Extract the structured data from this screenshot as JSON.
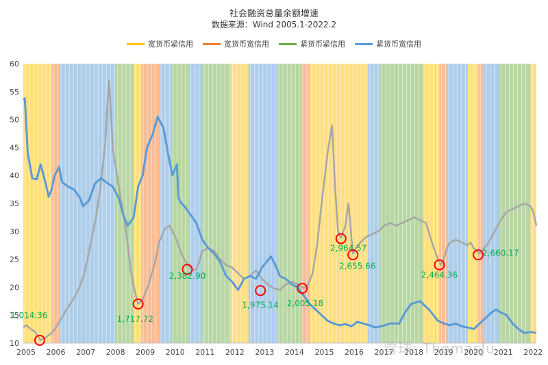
{
  "chart_data": {
    "type": "line",
    "title": "社会融资总量余额增速",
    "subtitle": "数据来源：Wind 2005.1-2022.2",
    "xlabel": "",
    "ylabel": "",
    "ylim": [
      10,
      60
    ],
    "yticks": [
      10,
      15,
      20,
      25,
      30,
      35,
      40,
      45,
      50,
      55,
      60
    ],
    "xlim": [
      2005.0,
      2022.2
    ],
    "xticks": [
      "2005",
      "2006",
      "2007",
      "2008",
      "2009",
      "2010",
      "2011",
      "2012",
      "2013",
      "2014",
      "2015",
      "2016",
      "2017",
      "2018",
      "2019",
      "2020",
      "2021",
      "2022"
    ],
    "legend_position": "top",
    "grid": false,
    "regime_legend": [
      {
        "name": "宽货币紧信用",
        "color": "#ffc000"
      },
      {
        "name": "宽货币宽信用",
        "color": "#ed7d31"
      },
      {
        "name": "紧货币紧信用",
        "color": "#70ad47"
      },
      {
        "name": "紧货币宽信用",
        "color": "#5b9bd5"
      }
    ],
    "regime_periods": [
      {
        "start": 2005.0,
        "end": 2005.95,
        "regime": "宽货币紧信用"
      },
      {
        "start": 2005.95,
        "end": 2006.2,
        "regime": "宽货币宽信用"
      },
      {
        "start": 2006.2,
        "end": 2008.1,
        "regime": "紧货币宽信用"
      },
      {
        "start": 2008.1,
        "end": 2008.7,
        "regime": "紧货币紧信用"
      },
      {
        "start": 2008.7,
        "end": 2008.95,
        "regime": "宽货币紧信用"
      },
      {
        "start": 2008.95,
        "end": 2009.55,
        "regime": "宽货币宽信用"
      },
      {
        "start": 2009.55,
        "end": 2009.95,
        "regime": "紧货币宽信用"
      },
      {
        "start": 2009.95,
        "end": 2010.55,
        "regime": "紧货币紧信用"
      },
      {
        "start": 2010.55,
        "end": 2011.0,
        "regime": "紧货币宽信用"
      },
      {
        "start": 2011.0,
        "end": 2011.95,
        "regime": "紧货币紧信用"
      },
      {
        "start": 2011.95,
        "end": 2012.55,
        "regime": "宽货币紧信用"
      },
      {
        "start": 2012.55,
        "end": 2013.5,
        "regime": "紧货币宽信用"
      },
      {
        "start": 2013.5,
        "end": 2014.3,
        "regime": "紧货币紧信用"
      },
      {
        "start": 2014.3,
        "end": 2014.6,
        "regime": "宽货币宽信用"
      },
      {
        "start": 2014.6,
        "end": 2016.55,
        "regime": "宽货币紧信用"
      },
      {
        "start": 2016.55,
        "end": 2016.95,
        "regime": "紧货币宽信用"
      },
      {
        "start": 2016.95,
        "end": 2018.4,
        "regime": "紧货币紧信用"
      },
      {
        "start": 2018.4,
        "end": 2018.95,
        "regime": "宽货币紧信用"
      },
      {
        "start": 2018.95,
        "end": 2019.2,
        "regime": "宽货币宽信用"
      },
      {
        "start": 2019.2,
        "end": 2019.9,
        "regime": "紧货币宽信用"
      },
      {
        "start": 2019.9,
        "end": 2020.25,
        "regime": "宽货币紧信用"
      },
      {
        "start": 2020.25,
        "end": 2020.45,
        "regime": "宽货币宽信用"
      },
      {
        "start": 2020.45,
        "end": 2020.95,
        "regime": "紧货币宽信用"
      },
      {
        "start": 2020.95,
        "end": 2022.0,
        "regime": "紧货币紧信用"
      },
      {
        "start": 2022.0,
        "end": 2022.2,
        "regime": "宽货币紧信用"
      }
    ],
    "series": [
      {
        "name": "",
        "color": "#a6a6a6",
        "x": [
          2005.0,
          2005.1,
          2005.25,
          2005.4,
          2005.5,
          2005.58,
          2005.75,
          2005.95,
          2006.1,
          2006.25,
          2006.45,
          2006.6,
          2006.75,
          2006.9,
          2007.05,
          2007.25,
          2007.45,
          2007.6,
          2007.75,
          2007.82,
          2007.88,
          2008.0,
          2008.2,
          2008.45,
          2008.6,
          2008.75,
          2008.85,
          2009.0,
          2009.2,
          2009.4,
          2009.55,
          2009.75,
          2009.9,
          2010.1,
          2010.3,
          2010.5,
          2010.7,
          2010.8,
          2010.9,
          2011.0,
          2011.2,
          2011.4,
          2011.6,
          2011.8,
          2012.0,
          2012.2,
          2012.4,
          2012.6,
          2012.8,
          2013.0,
          2013.2,
          2013.4,
          2013.6,
          2013.8,
          2014.0,
          2014.2,
          2014.4,
          2014.55,
          2014.7,
          2014.85,
          2015.0,
          2015.2,
          2015.35,
          2015.45,
          2015.55,
          2015.65,
          2015.8,
          2015.9,
          2016.0,
          2016.05,
          2016.15,
          2016.3,
          2016.5,
          2016.7,
          2016.9,
          2017.1,
          2017.3,
          2017.5,
          2017.7,
          2017.9,
          2018.1,
          2018.3,
          2018.5,
          2018.7,
          2018.9,
          2019.0,
          2019.1,
          2019.2,
          2019.3,
          2019.5,
          2019.7,
          2019.9,
          2020.0,
          2020.1,
          2020.2,
          2020.3,
          2020.45,
          2020.6,
          2020.8,
          2021.0,
          2021.2,
          2021.4,
          2021.6,
          2021.8,
          2022.0,
          2022.1,
          2022.2
        ],
        "values": [
          12.8,
          13.2,
          12.5,
          12.0,
          11.2,
          10.5,
          11.0,
          11.8,
          12.8,
          14.2,
          16.0,
          17.2,
          18.5,
          20.2,
          22.5,
          27.5,
          33.0,
          38.5,
          46.0,
          53.0,
          57.0,
          45.0,
          38.0,
          30.0,
          23.0,
          19.0,
          17.0,
          17.72,
          20.5,
          24.0,
          28.0,
          30.5,
          31.0,
          29.0,
          26.0,
          24.0,
          23.0,
          23.2,
          24.5,
          26.5,
          27.0,
          26.5,
          25.0,
          24.0,
          23.5,
          22.5,
          21.5,
          22.0,
          23.0,
          21.5,
          20.5,
          19.8,
          19.5,
          20.5,
          21.0,
          20.5,
          19.8,
          20.5,
          22.5,
          27.5,
          35.0,
          44.0,
          49.0,
          38.0,
          30.0,
          28.8,
          31.0,
          35.0,
          29.0,
          26.0,
          27.0,
          28.0,
          29.0,
          29.5,
          30.0,
          31.0,
          31.5,
          31.0,
          31.5,
          32.0,
          32.5,
          32.0,
          31.5,
          28.0,
          25.0,
          24.0,
          25.0,
          27.0,
          28.0,
          28.5,
          28.0,
          27.5,
          28.0,
          27.0,
          26.5,
          26.0,
          27.0,
          28.0,
          30.0,
          32.0,
          33.5,
          34.0,
          34.5,
          35.0,
          34.5,
          33.5,
          31.0
        ]
      },
      {
        "name": "",
        "color": "#5b9bd5",
        "x": [
          2005.0,
          2005.05,
          2005.15,
          2005.3,
          2005.45,
          2005.58,
          2005.75,
          2005.85,
          2005.95,
          2006.05,
          2006.2,
          2006.3,
          2006.5,
          2006.7,
          2006.9,
          2007.0,
          2007.2,
          2007.4,
          2007.6,
          2007.85,
          2008.0,
          2008.2,
          2008.35,
          2008.5,
          2008.7,
          2008.85,
          2009.0,
          2009.15,
          2009.35,
          2009.5,
          2009.7,
          2009.85,
          2010.0,
          2010.15,
          2010.2,
          2010.3,
          2010.4,
          2010.6,
          2010.8,
          2011.0,
          2011.2,
          2011.4,
          2011.6,
          2011.8,
          2012.0,
          2012.2,
          2012.4,
          2012.6,
          2012.8,
          2013.0,
          2013.15,
          2013.3,
          2013.45,
          2013.6,
          2013.8,
          2014.0,
          2014.2,
          2014.4,
          2014.6,
          2014.8,
          2015.0,
          2015.2,
          2015.4,
          2015.6,
          2015.8,
          2016.0,
          2016.2,
          2016.4,
          2016.6,
          2016.8,
          2017.0,
          2017.3,
          2017.6,
          2017.8,
          2018.0,
          2018.3,
          2018.6,
          2018.9,
          2019.1,
          2019.3,
          2019.5,
          2019.7,
          2019.9,
          2020.1,
          2020.3,
          2020.5,
          2020.7,
          2020.85,
          2021.0,
          2021.2,
          2021.4,
          2021.6,
          2021.8,
          2022.0,
          2022.2
        ],
        "values": [
          53.5,
          53.8,
          44.0,
          39.5,
          39.3,
          42.0,
          38.5,
          36.2,
          37.5,
          40.0,
          41.5,
          38.8,
          38.0,
          37.5,
          36.0,
          34.5,
          35.5,
          38.5,
          39.5,
          38.5,
          38.0,
          36.0,
          33.0,
          31.0,
          32.5,
          38.0,
          40.0,
          45.0,
          47.5,
          50.5,
          48.5,
          44.0,
          40.0,
          42.0,
          36.0,
          35.0,
          34.5,
          33.0,
          31.5,
          28.5,
          27.0,
          26.0,
          24.5,
          22.0,
          21.0,
          19.5,
          21.5,
          22.0,
          21.5,
          23.5,
          24.5,
          25.5,
          24.0,
          22.0,
          21.5,
          20.5,
          20.0,
          18.5,
          17.0,
          16.0,
          15.0,
          14.0,
          13.5,
          13.2,
          13.4,
          13.0,
          13.8,
          13.5,
          13.2,
          12.8,
          13.0,
          13.5,
          13.5,
          15.5,
          17.0,
          17.5,
          16.0,
          14.0,
          13.5,
          13.2,
          13.5,
          13.0,
          12.8,
          12.5,
          13.5,
          14.5,
          15.5,
          16.0,
          15.5,
          15.0,
          13.5,
          12.5,
          11.8,
          12.0,
          11.8
        ]
      }
    ],
    "annotations": [
      {
        "x": 2005.55,
        "y": 10.5,
        "label": "1,014.36",
        "lx": 2005.2,
        "ly": 14.5
      },
      {
        "x": 2008.85,
        "y": 17.0,
        "label": "1,717.72",
        "lx": 2008.75,
        "ly": 13.8
      },
      {
        "x": 2010.5,
        "y": 23.2,
        "label": "2,382.90",
        "lx": 2010.5,
        "ly": 21.5
      },
      {
        "x": 2012.95,
        "y": 19.4,
        "label": "1,975.14",
        "lx": 2012.95,
        "ly": 16.3
      },
      {
        "x": 2014.35,
        "y": 19.8,
        "label": "2,005.18",
        "lx": 2014.45,
        "ly": 16.6
      },
      {
        "x": 2015.65,
        "y": 28.7,
        "label": "2,964.57",
        "lx": 2015.9,
        "ly": 26.5
      },
      {
        "x": 2016.05,
        "y": 25.8,
        "label": "2,655.66",
        "lx": 2016.2,
        "ly": 23.3
      },
      {
        "x": 2018.95,
        "y": 24.0,
        "label": "2,464.36",
        "lx": 2018.95,
        "ly": 21.7
      },
      {
        "x": 2020.25,
        "y": 25.8,
        "label": "2,660.17",
        "lx": 2021.0,
        "ly": 25.6
      }
    ]
  },
  "watermark": "雪球: ThomasJu"
}
